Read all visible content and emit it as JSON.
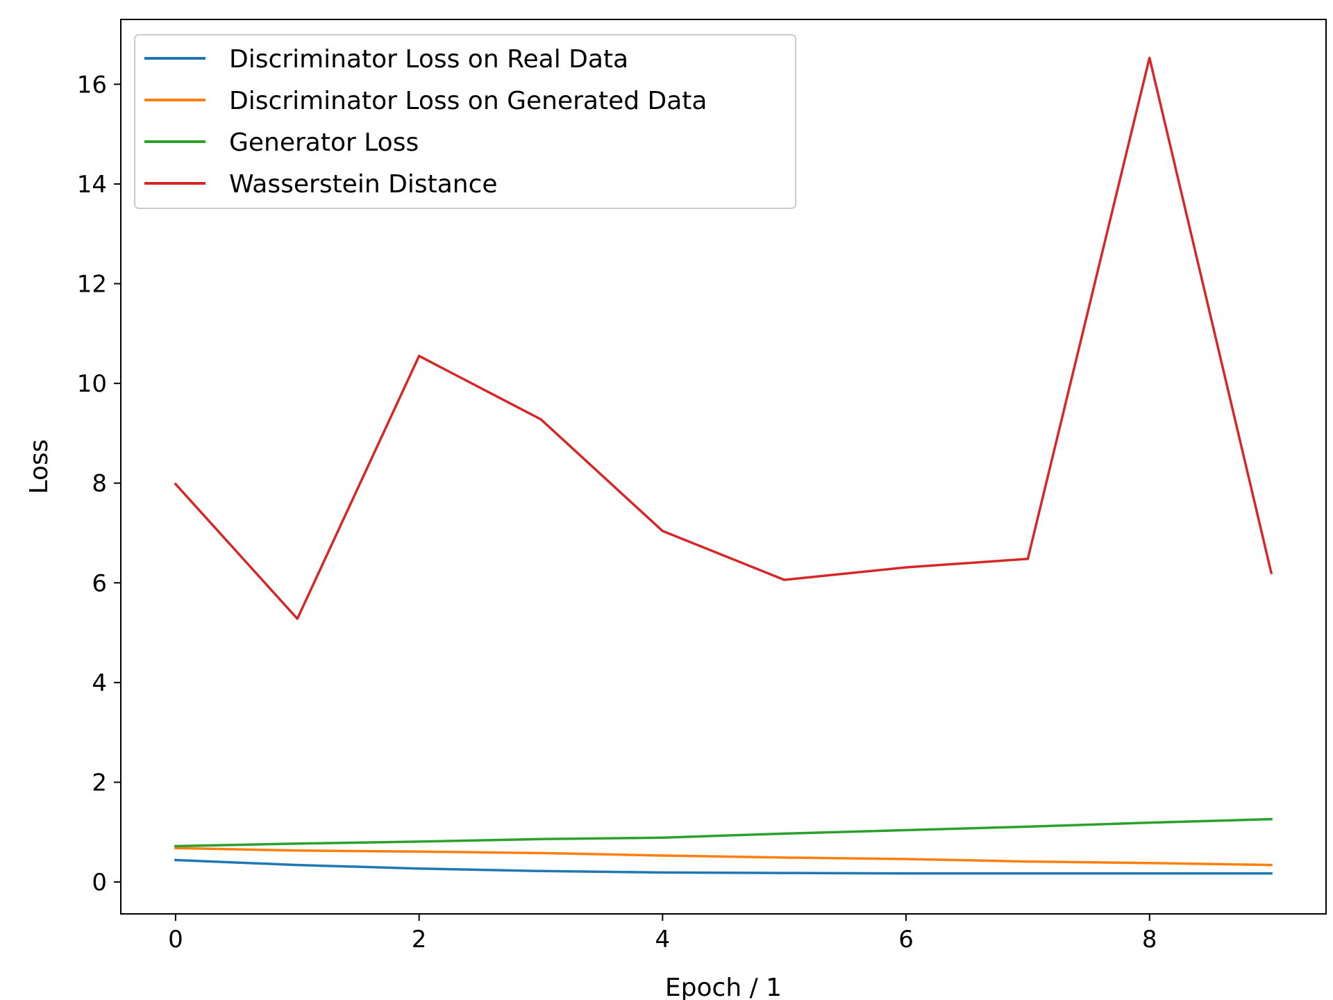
{
  "chart_data": {
    "type": "line",
    "xlabel": "Epoch / 1",
    "ylabel": "Loss",
    "xlim": [
      -0.45,
      9.45
    ],
    "ylim": [
      -0.64,
      17.3
    ],
    "x_ticks": [
      0,
      2,
      4,
      6,
      8
    ],
    "y_ticks": [
      0,
      2,
      4,
      6,
      8,
      10,
      12,
      14,
      16
    ],
    "grid": false,
    "legend_position": "top-left",
    "x": [
      0,
      1,
      2,
      3,
      4,
      5,
      6,
      7,
      8,
      9
    ],
    "series": [
      {
        "name": "Discriminator Loss on Real Data",
        "color": "#1f77b4",
        "values": [
          0.44,
          0.34,
          0.27,
          0.22,
          0.19,
          0.18,
          0.17,
          0.17,
          0.17,
          0.17
        ]
      },
      {
        "name": "Discriminator Loss on Generated Data",
        "color": "#ff7f0e",
        "values": [
          0.68,
          0.63,
          0.61,
          0.58,
          0.53,
          0.49,
          0.46,
          0.41,
          0.38,
          0.34
        ]
      },
      {
        "name": "Generator Loss",
        "color": "#2ca02c",
        "values": [
          0.72,
          0.77,
          0.81,
          0.86,
          0.89,
          0.97,
          1.04,
          1.11,
          1.19,
          1.26
        ]
      },
      {
        "name": "Wasserstein Distance",
        "color": "#d62728",
        "values": [
          7.98,
          5.28,
          10.55,
          9.28,
          7.04,
          6.06,
          6.31,
          6.48,
          16.53,
          6.2
        ]
      }
    ]
  }
}
